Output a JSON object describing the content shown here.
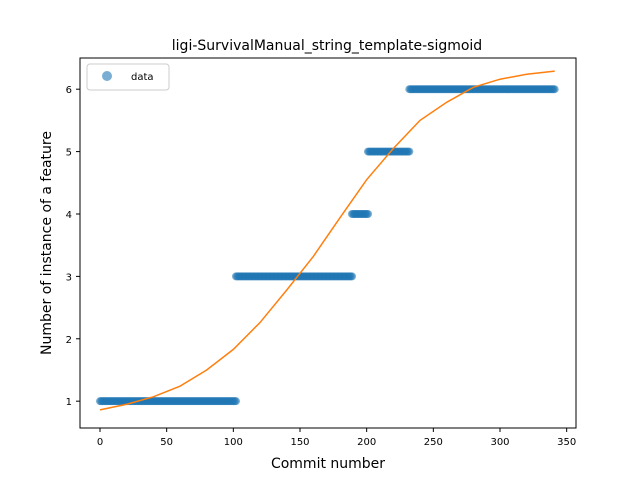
{
  "chart_data": {
    "type": "scatter",
    "title": "ligi-SurvivalManual_string_template-sigmoid",
    "xlabel": "Commit number",
    "ylabel": "Number of instance of a feature",
    "xlim": [
      -15,
      357
    ],
    "ylim": [
      0.57,
      6.5
    ],
    "xticks": [
      0,
      50,
      100,
      150,
      200,
      250,
      300,
      350
    ],
    "yticks": [
      1,
      2,
      3,
      4,
      5,
      6
    ],
    "grid": false,
    "legend_position": "top-left",
    "series": [
      {
        "name": "data",
        "kind": "scatter",
        "color": "#1f77b4",
        "segments": [
          {
            "x_start": 0,
            "x_end": 102,
            "y": 1
          },
          {
            "x_start": 102,
            "x_end": 189,
            "y": 3
          },
          {
            "x_start": 189,
            "x_end": 201,
            "y": 4
          },
          {
            "x_start": 201,
            "x_end": 232,
            "y": 5
          },
          {
            "x_start": 232,
            "x_end": 341,
            "y": 6
          }
        ]
      },
      {
        "kind": "line",
        "color": "#ff7f0e",
        "x": [
          0,
          20,
          40,
          60,
          80,
          100,
          120,
          140,
          160,
          180,
          200,
          220,
          240,
          260,
          280,
          300,
          320,
          341
        ],
        "y": [
          0.86,
          0.95,
          1.07,
          1.24,
          1.5,
          1.83,
          2.26,
          2.78,
          3.32,
          3.94,
          4.55,
          5.05,
          5.5,
          5.79,
          6.03,
          6.16,
          6.24,
          6.29
        ]
      }
    ]
  }
}
